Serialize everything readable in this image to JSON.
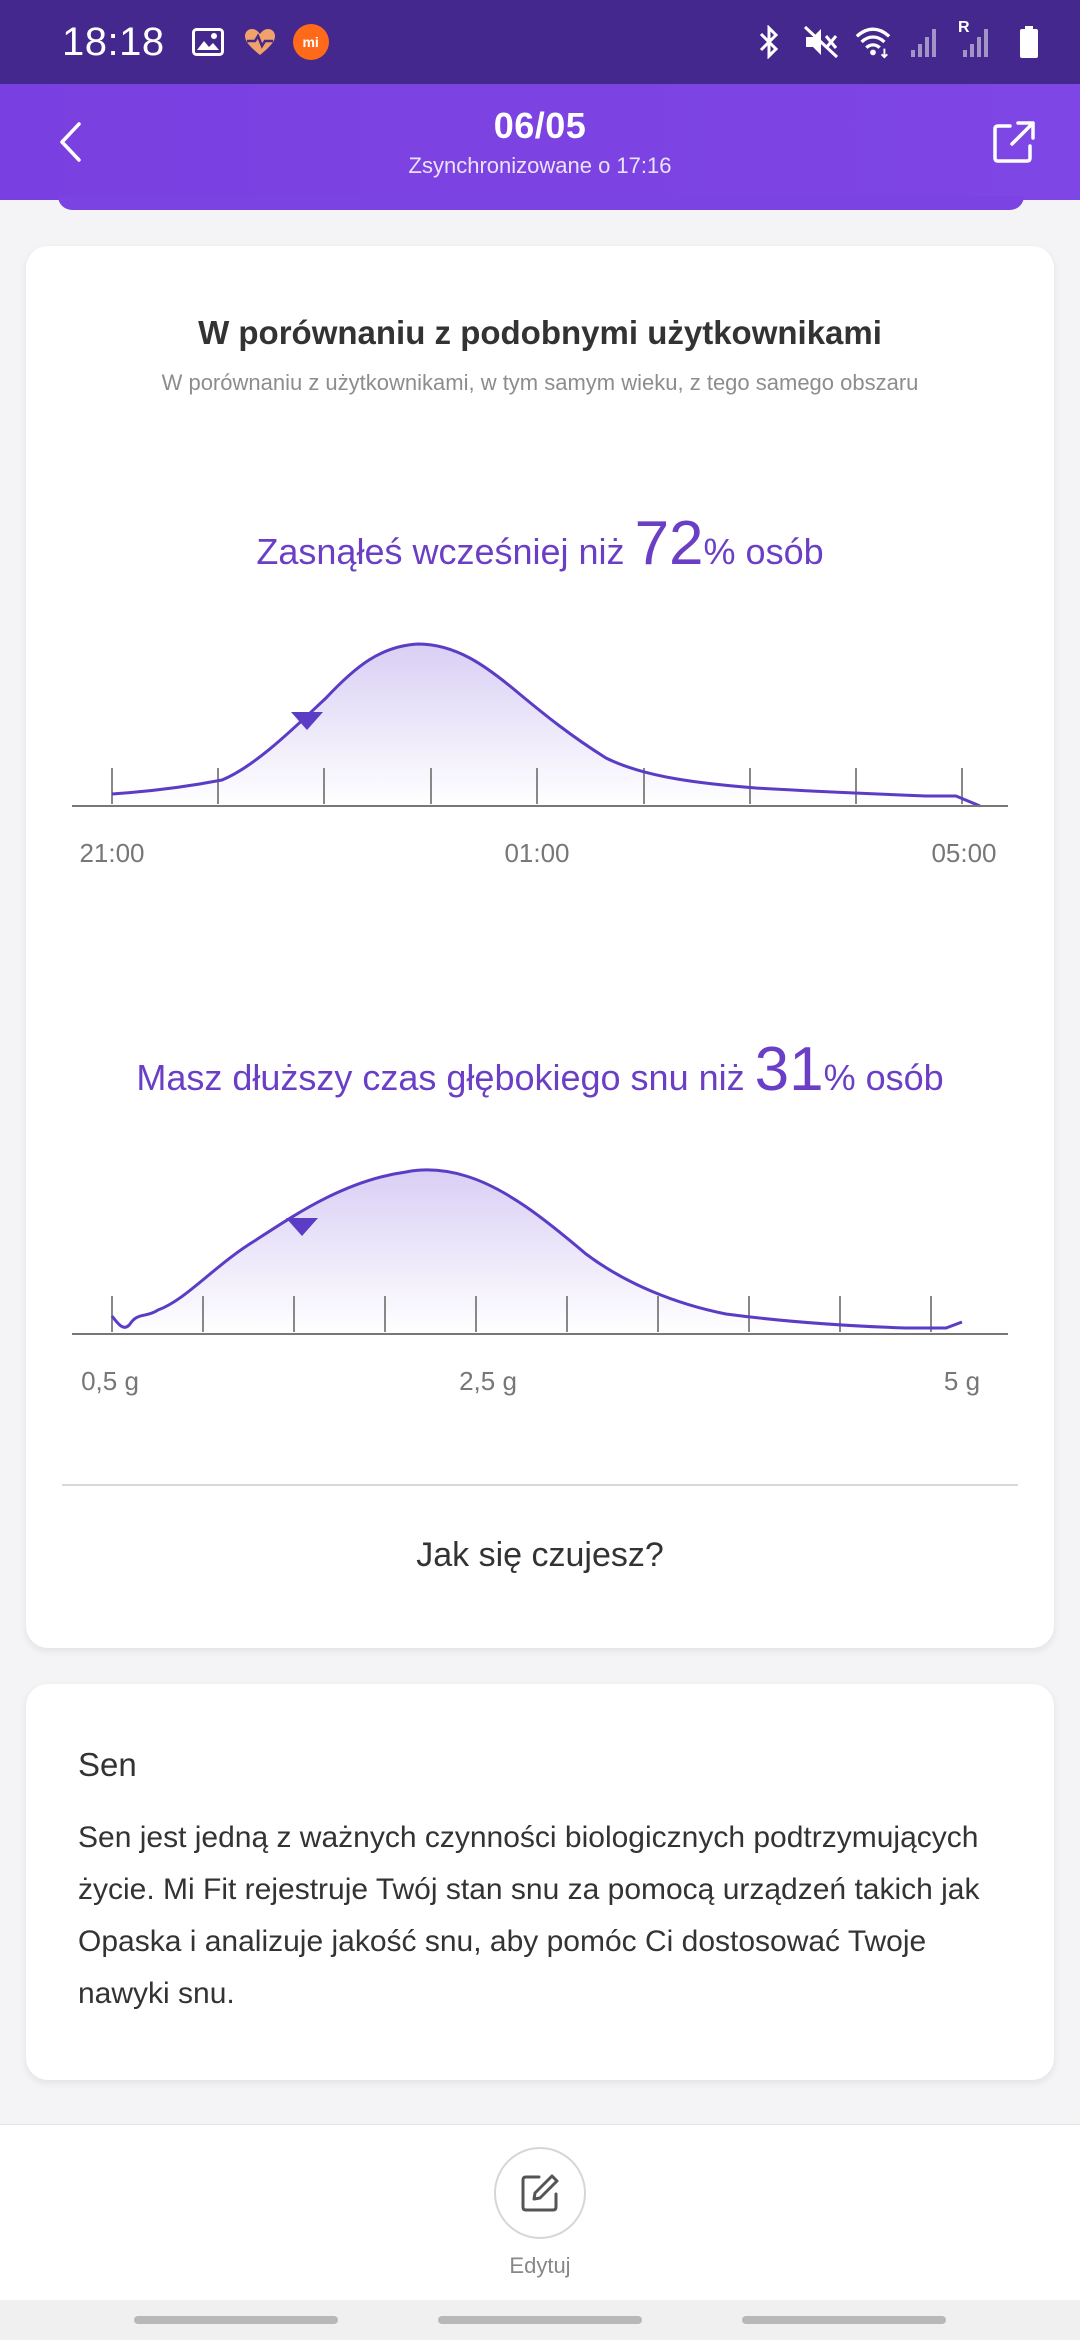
{
  "status_bar": {
    "time": "18:18",
    "left_icons": [
      "image-icon",
      "heart-health-icon",
      "mi-app-icon"
    ],
    "right_icons": [
      "bluetooth-icon",
      "mute-vibrate-icon",
      "wifi-icon",
      "signal-icon",
      "signal-roaming-icon",
      "battery-icon"
    ],
    "roaming_label": "R"
  },
  "header": {
    "title": "06/05",
    "subtitle": "Zsynchronizowane o 17:16",
    "back_icon": "chevron-left-icon",
    "share_icon": "share-export-icon"
  },
  "comparison": {
    "title": "W porównaniu z podobnymi użytkownikami",
    "subtitle": "W porównaniu z użytkownikami, w tym samym wieku, z tego samego obszaru",
    "sleep_onset": {
      "prefix": "Zasnąłeś wcześniej niż ",
      "percent": "72",
      "suffix": "% osób",
      "tick_labels": [
        "21:00",
        "01:00",
        "05:00"
      ]
    },
    "deep_sleep": {
      "prefix": "Masz dłuższy czas głębokiego snu niż ",
      "percent": "31",
      "suffix": "% osób",
      "tick_labels": [
        "0,5 g",
        "2,5 g",
        "5 g"
      ]
    },
    "feel_button": "Jak się czujesz?"
  },
  "sleep_info": {
    "title": "Sen",
    "text": "Sen jest jedną z ważnych czynności biologicznych podtrzymujących życie. Mi Fit rejestruje Twój stan snu za pomocą urządzeń takich jak Opaska i analizuje jakość snu, aby pomóc Ci dostosować Twoje nawyki snu."
  },
  "bottom": {
    "edit_label": "Edytuj",
    "edit_icon": "edit-note-icon"
  },
  "colors": {
    "status_bar": "#45288e",
    "header": "#7b44e2",
    "accent_text": "#6a3fc6",
    "curve": "#5b3cc4"
  }
}
